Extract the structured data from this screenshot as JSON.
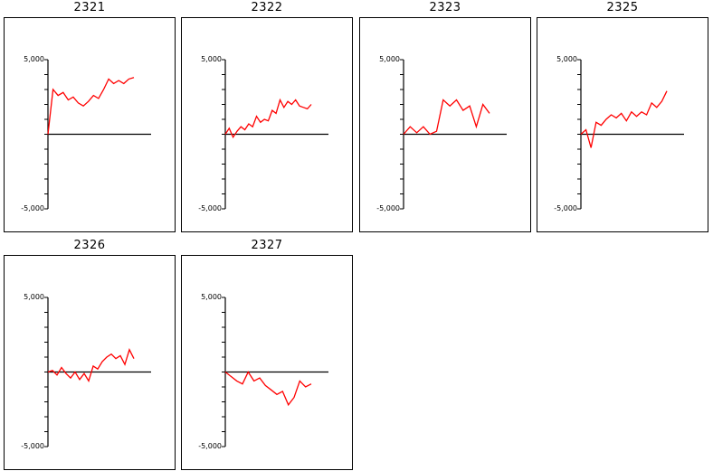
{
  "colors": {
    "line": "#ff0000",
    "axis": "#000000",
    "frame": "#000000"
  },
  "chart_data": [
    {
      "type": "line",
      "title": "2321",
      "ylim": [
        -5000,
        5000
      ],
      "yticks": [
        {
          "value": 5000,
          "label": "5,000"
        },
        {
          "value": -5000,
          "label": "-5,000"
        }
      ],
      "series": [
        {
          "values": [
            0,
            3000,
            2600,
            2800,
            2300,
            2500,
            2100,
            1900,
            2200,
            2600,
            2400,
            3000,
            3700,
            3400,
            3600,
            3400,
            3700,
            3800
          ]
        }
      ]
    },
    {
      "type": "line",
      "title": "2322",
      "ylim": [
        -5000,
        5000
      ],
      "yticks": [
        {
          "value": 5000,
          "label": "5,000"
        },
        {
          "value": -5000,
          "label": "-5,000"
        }
      ],
      "series": [
        {
          "values": [
            0,
            400,
            -200,
            200,
            500,
            300,
            700,
            500,
            1200,
            800,
            1000,
            900,
            1600,
            1400,
            2300,
            1800,
            2200,
            2000,
            2300,
            1900,
            1800,
            1700,
            2000
          ]
        }
      ]
    },
    {
      "type": "line",
      "title": "2323",
      "ylim": [
        -5000,
        5000
      ],
      "yticks": [
        {
          "value": 5000,
          "label": "5,000"
        },
        {
          "value": -5000,
          "label": "-5,000"
        }
      ],
      "series": [
        {
          "values": [
            0,
            500,
            100,
            500,
            0,
            200,
            2300,
            1900,
            2300,
            1600,
            1900,
            500,
            2000,
            1400
          ]
        }
      ]
    },
    {
      "type": "line",
      "title": "2325",
      "ylim": [
        -5000,
        5000
      ],
      "yticks": [
        {
          "value": 5000,
          "label": "5,000"
        },
        {
          "value": -5000,
          "label": "-5,000"
        }
      ],
      "series": [
        {
          "values": [
            0,
            300,
            -900,
            800,
            600,
            1000,
            1300,
            1100,
            1400,
            900,
            1500,
            1200,
            1500,
            1300,
            2100,
            1800,
            2200,
            2900
          ]
        }
      ]
    },
    {
      "type": "line",
      "title": "2326",
      "ylim": [
        -5000,
        5000
      ],
      "yticks": [
        {
          "value": 5000,
          "label": "5,000"
        },
        {
          "value": -5000,
          "label": "-5,000"
        }
      ],
      "series": [
        {
          "values": [
            0,
            100,
            -200,
            300,
            -100,
            -400,
            0,
            -500,
            -100,
            -600,
            400,
            200,
            700,
            1000,
            1200,
            900,
            1100,
            500,
            1500,
            900
          ]
        }
      ]
    },
    {
      "type": "line",
      "title": "2327",
      "ylim": [
        -5000,
        5000
      ],
      "yticks": [
        {
          "value": 5000,
          "label": "5,000"
        },
        {
          "value": -5000,
          "label": "-5,000"
        }
      ],
      "series": [
        {
          "values": [
            0,
            -300,
            -600,
            -800,
            0,
            -600,
            -400,
            -900,
            -1200,
            -1500,
            -1300,
            -2200,
            -1700,
            -600,
            -1000,
            -800
          ]
        }
      ]
    }
  ]
}
